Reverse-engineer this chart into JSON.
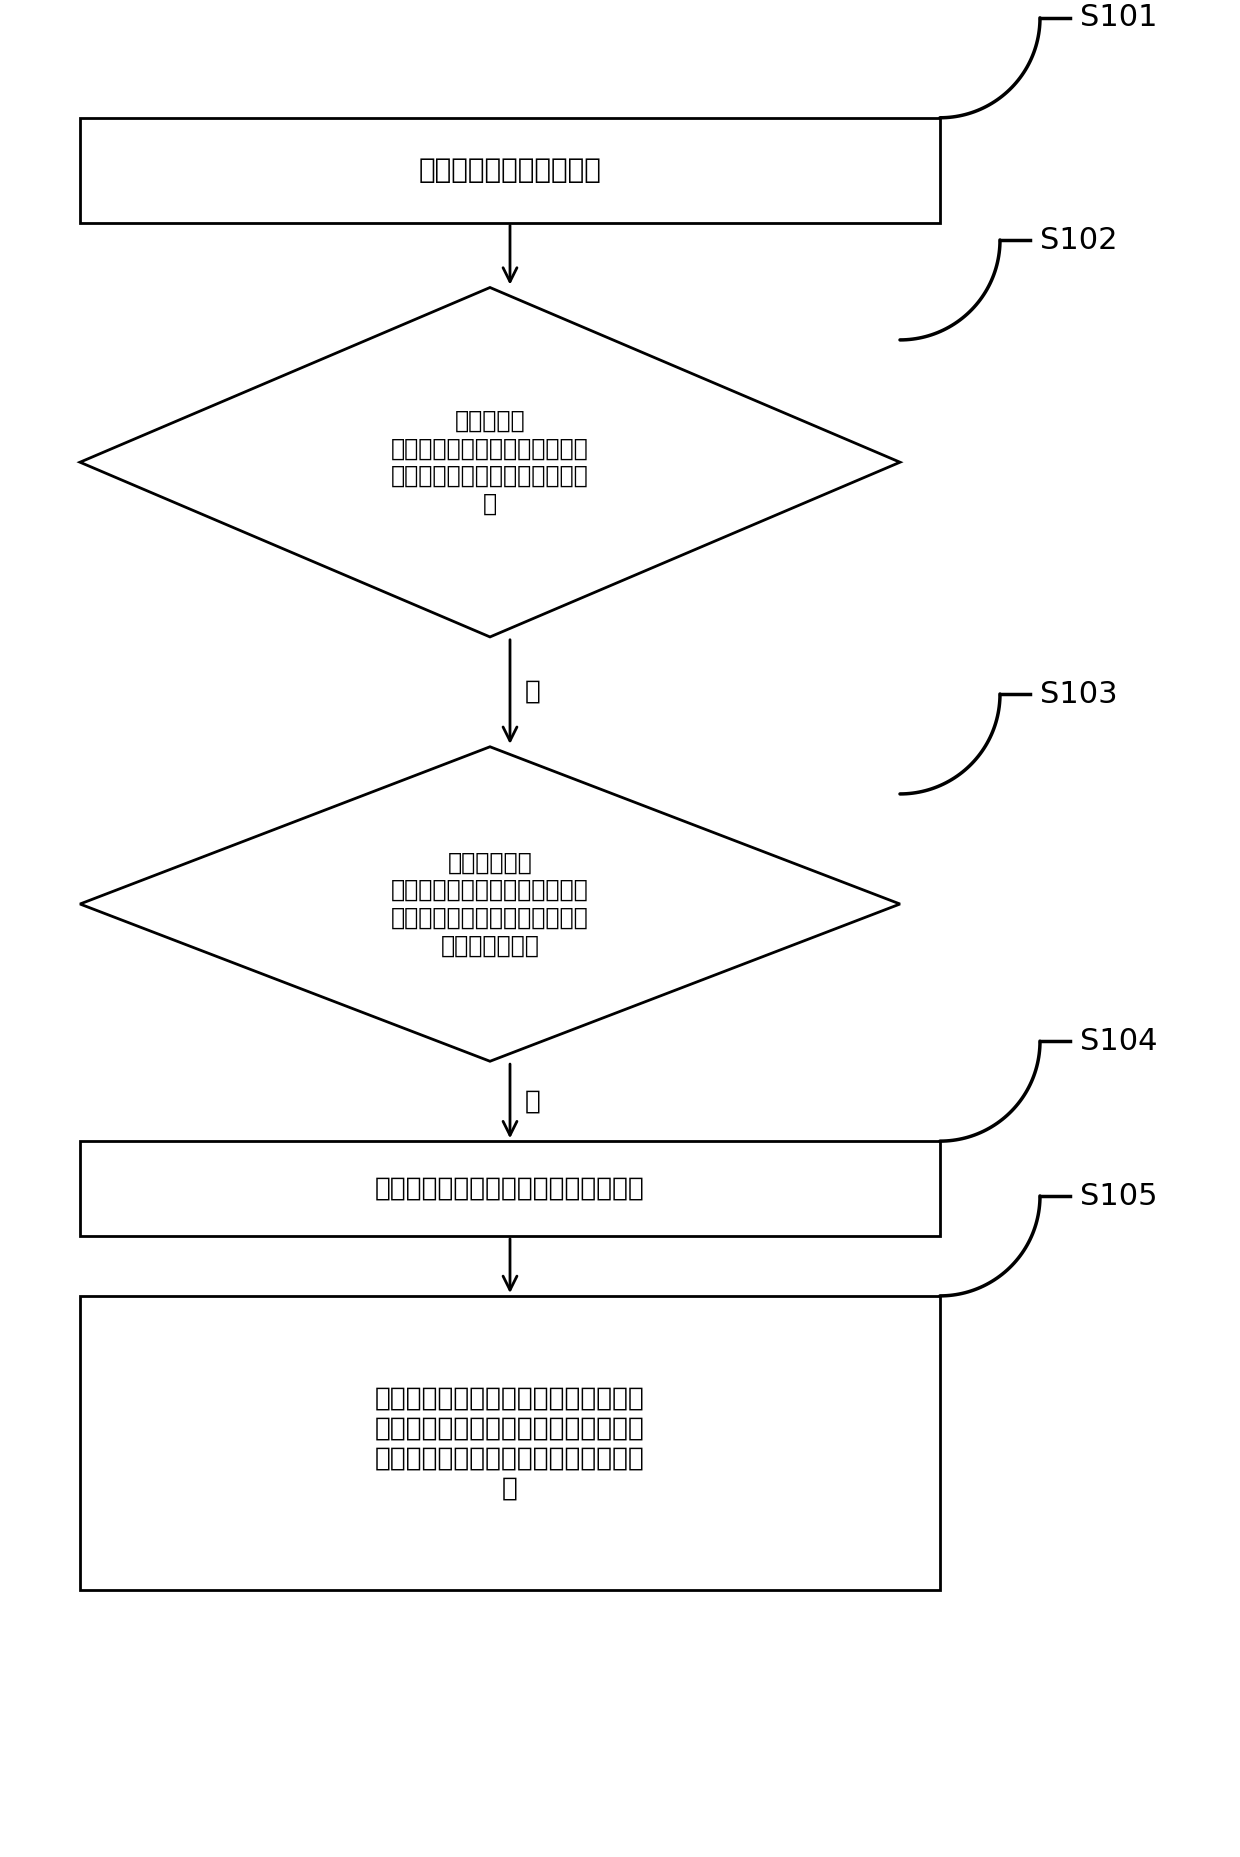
{
  "bg_color": "#ffffff",
  "line_color": "#000000",
  "text_color": "#000000",
  "fig_width": 12.4,
  "fig_height": 18.57,
  "lw": 2.0,
  "S101": {
    "label": "接收到启动驻车制动指令",
    "type": "rect"
  },
  "S102": {
    "label": "控制电机正\n转，根据电机的第一电流值判断\n制动卡钳是否已到达制动盘接触\n面",
    "type": "diamond"
  },
  "S103": {
    "label": "当制动卡钳已\n经到达制动盘接触面时，根据电\n机的第二电流值和转速值判断制\n动卡钳是否夹紧",
    "type": "diamond"
  },
  "S104": {
    "label": "当制动卡钳夹紧时，执行电机锁止动作",
    "type": "rect"
  },
  "S105": {
    "label": "当接收到释放指令时，控制锁止销从电\n机的输出轴花键槽移出，使锁止销从输\n出轴花键槽中完全释放；接通电机的电\n源",
    "type": "rect"
  },
  "arrow_label_yes": "是"
}
